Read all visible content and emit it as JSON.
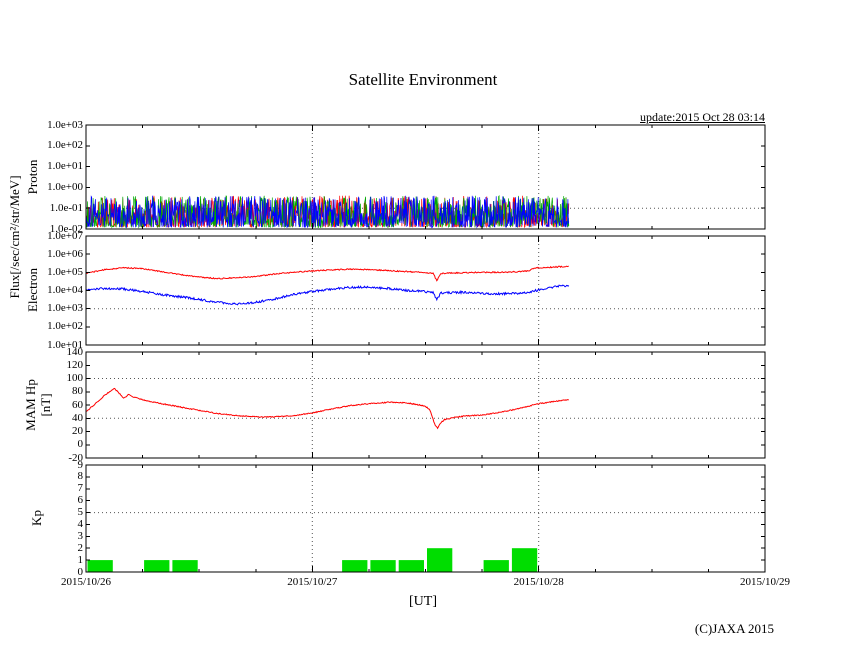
{
  "title": "Satellite Environment",
  "update_label": "update:2015 Oct 28 03:14",
  "copyright": "(C)JAXA 2015",
  "flux_axis_label": "Flux[/sec/cm²/str/MeV]",
  "colors": {
    "red": "#ff0000",
    "blue": "#0000ff",
    "green": "#00a800",
    "kp_bar": "#00dd00",
    "grid": "#555555",
    "frame": "#000000"
  },
  "xaxis": {
    "label": "[UT]",
    "tick_labels": [
      "2015/10/26",
      "2015/10/27",
      "2015/10/28",
      "2015/10/29"
    ],
    "range_hours": [
      0,
      72
    ]
  },
  "chart_data": [
    {
      "type": "line",
      "name": "proton-flux",
      "ylabel": "Proton",
      "yscale": "log",
      "ylim": [
        0.01,
        1000
      ],
      "yticks": [
        {
          "v": 1000,
          "label": "1.0e+03"
        },
        {
          "v": 100,
          "label": "1.0e+02"
        },
        {
          "v": 10,
          "label": "1.0e+01"
        },
        {
          "v": 1,
          "label": "1.0e+00"
        },
        {
          "v": 0.1,
          "label": "1.0e-01"
        },
        {
          "v": 0.01,
          "label": "1.0e-02"
        }
      ],
      "threshold_lines": [
        0.1
      ],
      "noise_band": {
        "tmin": 0,
        "tmax": 51.2,
        "vmin": 0.012,
        "vmax": 0.4,
        "colors": [
          "red",
          "green",
          "blue"
        ]
      }
    },
    {
      "type": "line",
      "name": "electron-flux",
      "ylabel": "Electron",
      "yscale": "log",
      "ylim": [
        10,
        10000000
      ],
      "yticks": [
        {
          "v": 10000000,
          "label": "1.0e+07"
        },
        {
          "v": 1000000,
          "label": "1.0e+06"
        },
        {
          "v": 100000,
          "label": "1.0e+05"
        },
        {
          "v": 10000,
          "label": "1.0e+04"
        },
        {
          "v": 1000,
          "label": "1.0e+03"
        },
        {
          "v": 100,
          "label": "1.0e+02"
        },
        {
          "v": 10,
          "label": "1.0e+01"
        }
      ],
      "threshold_lines": [
        1000
      ],
      "series": [
        {
          "name": "electron-high",
          "color": "red",
          "jitter": 0.03,
          "x": [
            0,
            2,
            4,
            6,
            8,
            10,
            12,
            14,
            16,
            18,
            20,
            22,
            24,
            26,
            28,
            30,
            32,
            34,
            35.5,
            36.8,
            37.2,
            37.6,
            38,
            40,
            42,
            44,
            46,
            47,
            47.5,
            48,
            50,
            51.2
          ],
          "y": [
            90000,
            140000,
            180000,
            160000,
            110000,
            75000,
            55000,
            45000,
            50000,
            60000,
            80000,
            100000,
            120000,
            135000,
            150000,
            140000,
            125000,
            110000,
            100000,
            90000,
            35000,
            85000,
            90000,
            95000,
            100000,
            100000,
            110000,
            120000,
            170000,
            180000,
            200000,
            210000
          ]
        },
        {
          "name": "electron-low",
          "color": "blue",
          "jitter": 0.06,
          "x": [
            0,
            2,
            4,
            6,
            8,
            10,
            12,
            14,
            16,
            18,
            20,
            22,
            24,
            26,
            28,
            30,
            32,
            34,
            35.5,
            36.8,
            37.2,
            37.6,
            38,
            40,
            42,
            44,
            46,
            47,
            48,
            49,
            50,
            51.2
          ],
          "y": [
            11000,
            13000,
            12000,
            9000,
            6000,
            4500,
            3200,
            2200,
            1800,
            2200,
            3500,
            6000,
            9000,
            12000,
            15000,
            15000,
            13000,
            10000,
            9000,
            8000,
            3000,
            7000,
            7500,
            8000,
            7000,
            6500,
            7000,
            8000,
            11000,
            14000,
            17000,
            19000
          ]
        }
      ]
    },
    {
      "type": "line",
      "name": "mam-hp",
      "ylabel": "MAM Hp",
      "ylabel2": "[nT]",
      "yscale": "linear",
      "ylim": [
        -20,
        140
      ],
      "yticks": [
        {
          "v": 140,
          "label": "140"
        },
        {
          "v": 120,
          "label": "120"
        },
        {
          "v": 100,
          "label": "100"
        },
        {
          "v": 80,
          "label": "80"
        },
        {
          "v": 60,
          "label": "60"
        },
        {
          "v": 40,
          "label": "40"
        },
        {
          "v": 20,
          "label": "20"
        },
        {
          "v": 0,
          "label": "0"
        },
        {
          "v": -20,
          "label": "-20"
        }
      ],
      "threshold_lines": [
        40,
        100
      ],
      "series": [
        {
          "name": "hp-field",
          "color": "red",
          "jitter": 0.8,
          "x": [
            0,
            1,
            2,
            3,
            3.5,
            4,
            4.5,
            5,
            6,
            8,
            10,
            12,
            14,
            16,
            18,
            20,
            22,
            24,
            26,
            28,
            30,
            32,
            33,
            34,
            35,
            36,
            36.5,
            37,
            37.3,
            37.6,
            38,
            39,
            40,
            42,
            44,
            46,
            48,
            50,
            51.2
          ],
          "y": [
            50,
            62,
            75,
            85,
            78,
            70,
            76,
            72,
            68,
            62,
            57,
            52,
            47,
            44,
            42,
            42,
            44,
            48,
            54,
            59,
            62,
            64,
            64,
            63,
            61,
            58,
            52,
            30,
            25,
            33,
            38,
            41,
            43,
            45,
            49,
            55,
            62,
            66,
            68
          ]
        }
      ]
    },
    {
      "type": "bar",
      "name": "kp-index",
      "ylabel": "Kp",
      "yscale": "linear",
      "ylim": [
        0,
        9
      ],
      "yticks": [
        {
          "v": 9,
          "label": "9"
        },
        {
          "v": 8,
          "label": "8"
        },
        {
          "v": 7,
          "label": "7"
        },
        {
          "v": 6,
          "label": "6"
        },
        {
          "v": 5,
          "label": "5"
        },
        {
          "v": 4,
          "label": "4"
        },
        {
          "v": 3,
          "label": "3"
        },
        {
          "v": 2,
          "label": "2"
        },
        {
          "v": 1,
          "label": "1"
        },
        {
          "v": 0,
          "label": "0"
        }
      ],
      "threshold_lines": [
        5
      ],
      "bars": {
        "slot_hours": 3,
        "start_hour": 0,
        "values": [
          1,
          0,
          1,
          1,
          0,
          0,
          0,
          0,
          0,
          1,
          1,
          1,
          2,
          0,
          1,
          2
        ]
      }
    }
  ]
}
